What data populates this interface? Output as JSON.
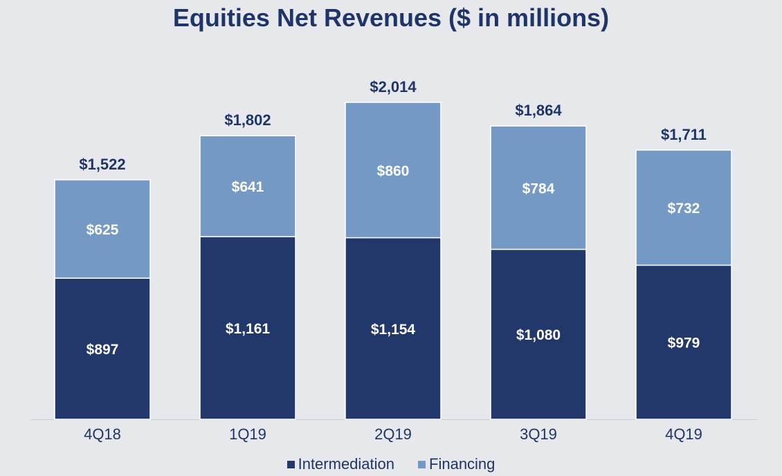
{
  "chart_data": {
    "type": "bar",
    "stacked": true,
    "title": "Equities Net Revenues ($ in millions)",
    "categories": [
      "4Q18",
      "1Q19",
      "2Q19",
      "3Q19",
      "4Q19"
    ],
    "series": [
      {
        "name": "Intermediation",
        "values": [
          897,
          1161,
          1154,
          1080,
          979
        ],
        "labels": [
          "$897",
          "$1,161",
          "$1,154",
          "$1,080",
          "$979"
        ],
        "color": "#22386a"
      },
      {
        "name": "Financing",
        "values": [
          625,
          641,
          860,
          784,
          732
        ],
        "labels": [
          "$625",
          "$641",
          "$860",
          "$784",
          "$732"
        ],
        "color": "#7499c4"
      }
    ],
    "totals": [
      1522,
      1802,
      2014,
      1864,
      1711
    ],
    "total_labels": [
      "$1,522",
      "$1,802",
      "$2,014",
      "$1,864",
      "$1,711"
    ],
    "ylim": [
      0,
      2014
    ],
    "grid": false,
    "legend_position": "bottom-center",
    "colors": {
      "background": "#e6e8ec",
      "text": "#1f3567",
      "axis": "#c9ccd2"
    }
  }
}
